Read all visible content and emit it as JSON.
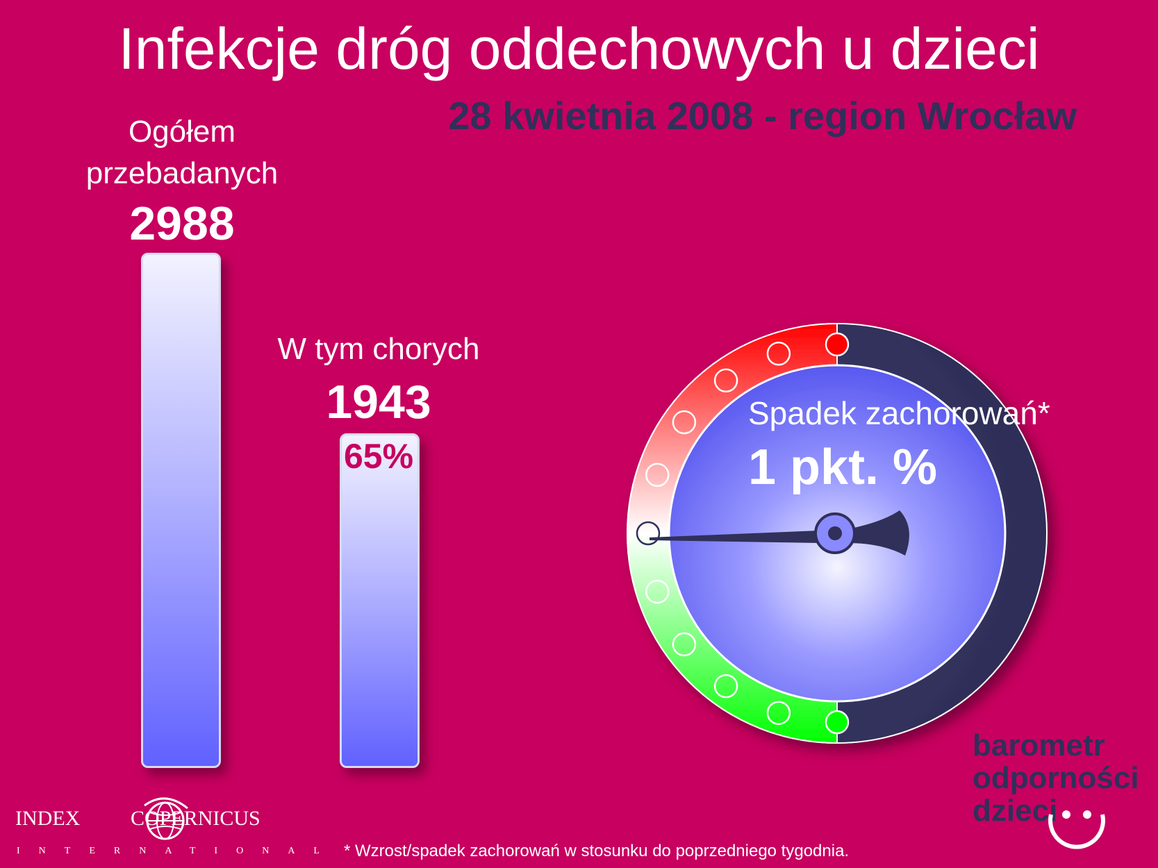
{
  "title": "Infekcje dróg oddechowych u dzieci",
  "subtitle": "28 kwietnia 2008 - region Wrocław",
  "chart_data": {
    "type": "bar",
    "categories": [
      "Ogółem przebadanych",
      "W tym chorych"
    ],
    "values": [
      2988,
      1943
    ],
    "labels": {
      "total_line1": "Ogółem",
      "total_line2": "przebadanych",
      "total_value": "2988",
      "sick_label": "W tym chorych",
      "sick_value": "1943",
      "sick_percent": "65%"
    },
    "ylim": [
      0,
      2988
    ],
    "bar_colors": [
      "#6161ff",
      "#6161ff"
    ]
  },
  "gauge": {
    "label": "Spadek zachorowań*",
    "value_text": "1 pkt. %",
    "positions": 11,
    "needle_position": 5,
    "colors": {
      "increase": "#ff0000",
      "decrease": "#00ff00",
      "dial": "#6a6aff",
      "rim": "#30305a"
    }
  },
  "logo": {
    "barometr": {
      "line1": "barometr",
      "line2": "odporności",
      "line3": "dzieci"
    },
    "publisher": {
      "word1": "INDEX",
      "word2": "COPERNICUS",
      "sub": "INTERNATIONAL"
    }
  },
  "footnote": "* Wzrost/spadek zachorowań w stosunku do poprzedniego tygodnia."
}
